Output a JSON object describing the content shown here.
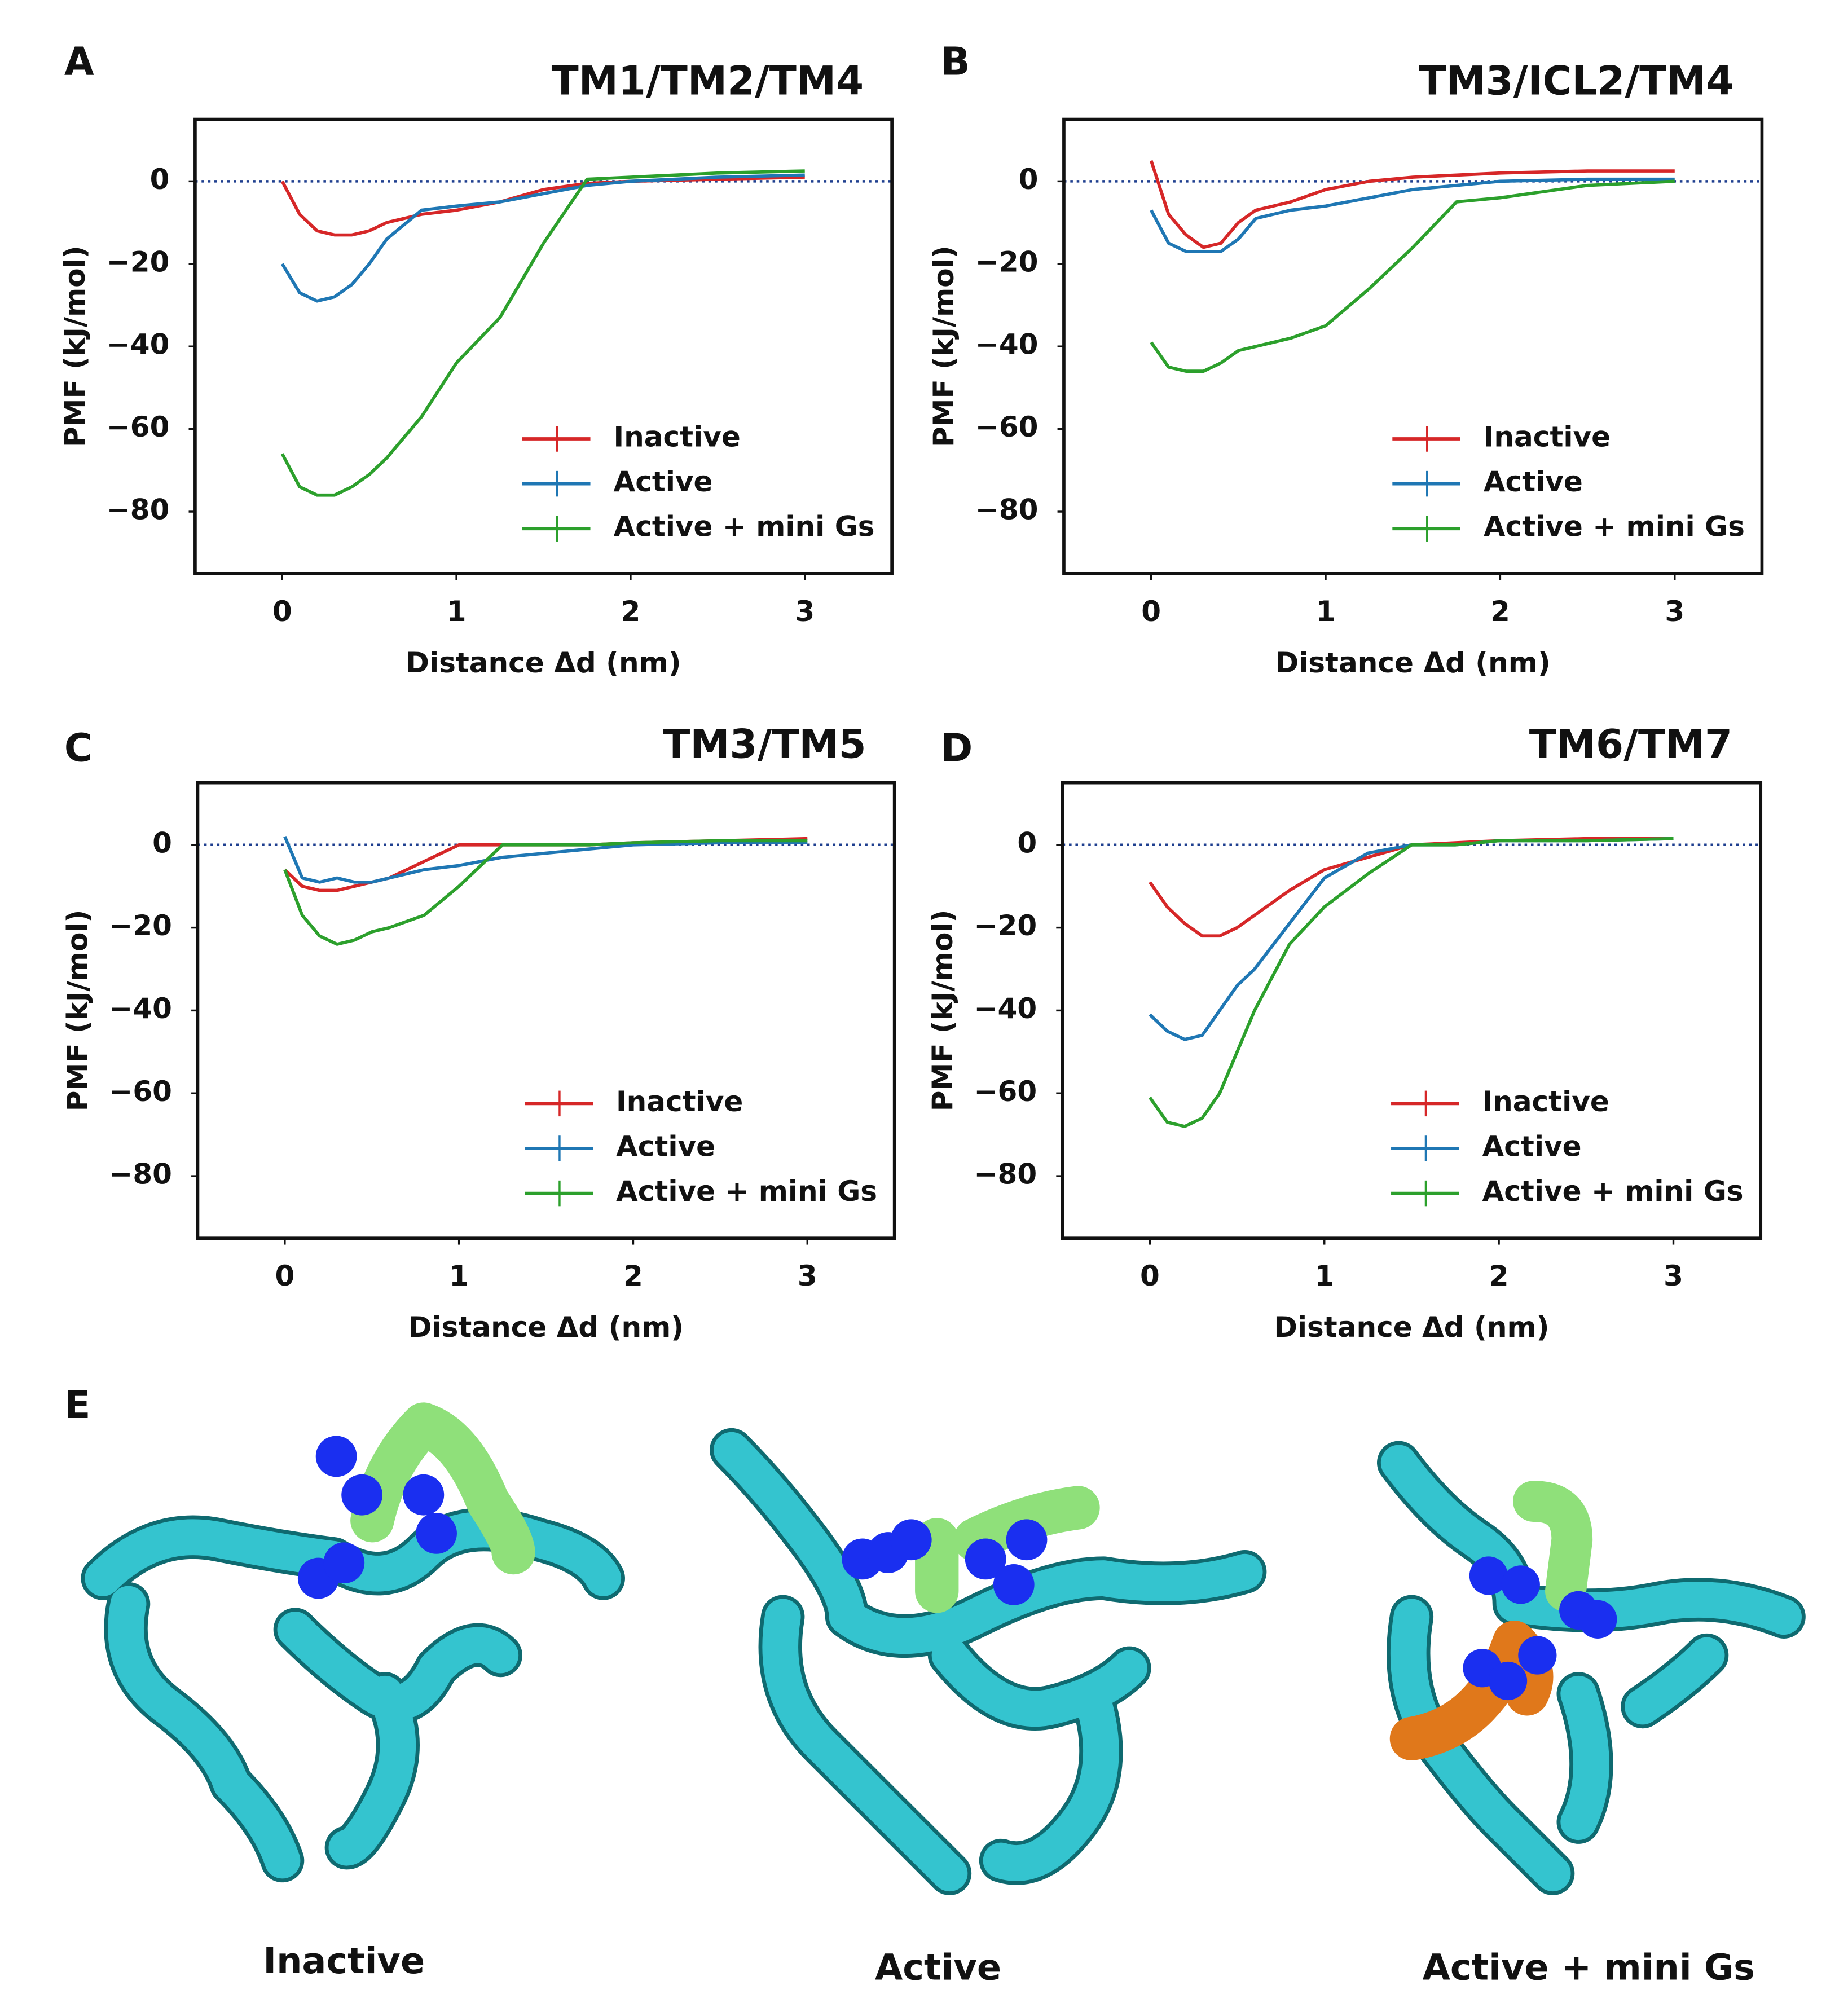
{
  "chart_data": [
    {
      "type": "line",
      "panel_label": "A",
      "title": "TM1/TM2/TM4",
      "xlabel": "Distance Δd (nm)",
      "ylabel": "PMF (kJ/mol)",
      "x": [
        0,
        0.1,
        0.2,
        0.3,
        0.4,
        0.5,
        0.6,
        0.8,
        1.0,
        1.25,
        1.5,
        1.75,
        2,
        2.5,
        3
      ],
      "series": [
        {
          "name": "Inactive",
          "color": "#d62728",
          "values": [
            0,
            -8,
            -12,
            -13,
            -13,
            -12,
            -10,
            -8,
            -7,
            -5,
            -2,
            -0.5,
            0,
            0.5,
            1
          ]
        },
        {
          "name": "Active",
          "color": "#1f77b4",
          "values": [
            -20,
            -27,
            -29,
            -28,
            -25,
            -20,
            -14,
            -7,
            -6,
            -5,
            -3,
            -1,
            0,
            1,
            1.5
          ]
        },
        {
          "name": "Active + mini Gs",
          "color": "#2ca02c",
          "values": [
            -66,
            -74,
            -76,
            -76,
            -74,
            -71,
            -67,
            -57,
            -44,
            -33,
            -15,
            0.5,
            1,
            2,
            2.5
          ]
        }
      ],
      "xlim": [
        -0.5,
        3.5
      ],
      "ylim": [
        -95,
        15
      ],
      "xticks": [
        0,
        1,
        2,
        3
      ],
      "yticks": [
        0,
        {
          "value": -20,
          "label": "−20"
        },
        {
          "value": -40,
          "label": "−40"
        },
        {
          "value": -60,
          "label": "−60"
        },
        {
          "value": -80,
          "label": "−80"
        }
      ],
      "zero_line": true,
      "legend": "lower right"
    },
    {
      "type": "line",
      "panel_label": "B",
      "title": "TM3/ICL2/TM4",
      "xlabel": "Distance Δd (nm)",
      "ylabel": "PMF (kJ/mol)",
      "x": [
        0,
        0.1,
        0.2,
        0.3,
        0.4,
        0.5,
        0.6,
        0.8,
        1.0,
        1.25,
        1.5,
        1.75,
        2,
        2.5,
        3
      ],
      "series": [
        {
          "name": "Inactive",
          "color": "#d62728",
          "values": [
            5,
            -8,
            -13,
            -16,
            -15,
            -10,
            -7,
            -5,
            -2,
            0,
            1,
            1.5,
            2,
            2.5,
            2.5
          ]
        },
        {
          "name": "Active",
          "color": "#1f77b4",
          "values": [
            -7,
            -15,
            -17,
            -17,
            -17,
            -14,
            -9,
            -7,
            -6,
            -4,
            -2,
            -1,
            0,
            0.5,
            0.5
          ]
        },
        {
          "name": "Active + mini Gs",
          "color": "#2ca02c",
          "values": [
            -39,
            -45,
            -46,
            -46,
            -44,
            -41,
            -40,
            -38,
            -35,
            -26,
            -16,
            -5,
            -4,
            -1,
            0
          ]
        }
      ],
      "xlim": [
        -0.5,
        3.5
      ],
      "ylim": [
        -95,
        15
      ],
      "xticks": [
        0,
        1,
        2,
        3
      ],
      "yticks": [
        0,
        {
          "value": -20,
          "label": "−20"
        },
        {
          "value": -40,
          "label": "−40"
        },
        {
          "value": -60,
          "label": "−60"
        },
        {
          "value": -80,
          "label": "−80"
        }
      ],
      "zero_line": true,
      "legend": "lower right"
    },
    {
      "type": "line",
      "panel_label": "C",
      "title": "TM3/TM5",
      "xlabel": "Distance Δd (nm)",
      "ylabel": "PMF (kJ/mol)",
      "x": [
        0,
        0.1,
        0.2,
        0.3,
        0.4,
        0.5,
        0.6,
        0.8,
        1.0,
        1.25,
        1.5,
        1.75,
        2,
        2.5,
        3
      ],
      "series": [
        {
          "name": "Inactive",
          "color": "#d62728",
          "values": [
            -6,
            -10,
            -11,
            -11,
            -10,
            -9,
            -8,
            -4,
            0,
            0,
            0,
            0,
            0.5,
            1,
            1.5
          ]
        },
        {
          "name": "Active",
          "color": "#1f77b4",
          "values": [
            2,
            -8,
            -9,
            -8,
            -9,
            -9,
            -8,
            -6,
            -5,
            -3,
            -2,
            -1,
            0,
            0.5,
            0.5
          ]
        },
        {
          "name": "Active + mini Gs",
          "color": "#2ca02c",
          "values": [
            -6,
            -17,
            -22,
            -24,
            -23,
            -21,
            -20,
            -17,
            -10,
            0,
            0,
            0,
            0.5,
            1,
            1
          ]
        }
      ],
      "xlim": [
        -0.5,
        3.5
      ],
      "ylim": [
        -95,
        15
      ],
      "xticks": [
        0,
        1,
        2,
        3
      ],
      "yticks": [
        0,
        {
          "value": -20,
          "label": "−20"
        },
        {
          "value": -40,
          "label": "−40"
        },
        {
          "value": -60,
          "label": "−60"
        },
        {
          "value": -80,
          "label": "−80"
        }
      ],
      "zero_line": true,
      "legend": "lower right"
    },
    {
      "type": "line",
      "panel_label": "D",
      "title": "TM6/TM7",
      "xlabel": "Distance Δd (nm)",
      "ylabel": "PMF (kJ/mol)",
      "x": [
        0,
        0.1,
        0.2,
        0.3,
        0.4,
        0.5,
        0.6,
        0.8,
        1.0,
        1.25,
        1.5,
        1.75,
        2,
        2.5,
        3
      ],
      "series": [
        {
          "name": "Inactive",
          "color": "#d62728",
          "values": [
            -9,
            -15,
            -19,
            -22,
            -22,
            -20,
            -17,
            -11,
            -6,
            -3,
            0,
            0.5,
            1,
            1.5,
            1.5
          ]
        },
        {
          "name": "Active",
          "color": "#1f77b4",
          "values": [
            -41,
            -45,
            -47,
            -46,
            -40,
            -34,
            -30,
            -19,
            -8,
            -2,
            0,
            0,
            1,
            1,
            1.5
          ]
        },
        {
          "name": "Active + mini Gs",
          "color": "#2ca02c",
          "values": [
            -61,
            -67,
            -68,
            -66,
            -60,
            -50,
            -40,
            -24,
            -15,
            -7,
            0,
            0,
            1,
            1,
            1.5
          ]
        }
      ],
      "xlim": [
        -0.5,
        3.5
      ],
      "ylim": [
        -95,
        15
      ],
      "xticks": [
        0,
        1,
        2,
        3
      ],
      "yticks": [
        0,
        {
          "value": -20,
          "label": "−20"
        },
        {
          "value": -40,
          "label": "−40"
        },
        {
          "value": -60,
          "label": "−60"
        },
        {
          "value": -80,
          "label": "−80"
        }
      ],
      "zero_line": true,
      "legend": "lower right"
    }
  ],
  "panel_e": {
    "label": "E",
    "captions": [
      "Inactive",
      "Active",
      "Active + mini Gs"
    ]
  }
}
